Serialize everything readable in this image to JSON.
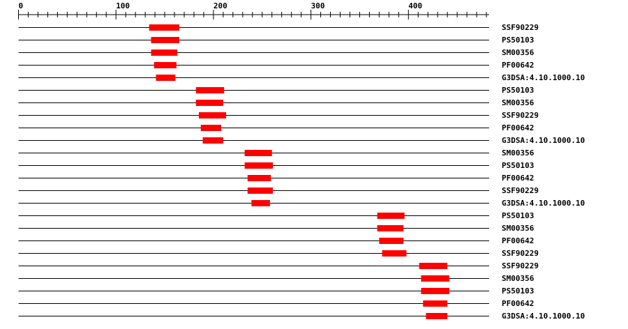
{
  "chart_data": {
    "type": "domain-track",
    "axis": {
      "min": 0,
      "max": 480,
      "major_ticks": [
        0,
        100,
        200,
        300,
        400
      ],
      "minor_step": 10
    },
    "bar_color": "#ff0000",
    "tracks": [
      {
        "label": "SSF90229",
        "start": 134,
        "end": 165
      },
      {
        "label": "PS50103",
        "start": 136,
        "end": 165
      },
      {
        "label": "SM00356",
        "start": 136,
        "end": 163
      },
      {
        "label": "PF00642",
        "start": 139,
        "end": 162
      },
      {
        "label": "G3DSA:4.10.1000.10",
        "start": 141,
        "end": 161
      },
      {
        "label": "PS50103",
        "start": 182,
        "end": 211
      },
      {
        "label": "SM00356",
        "start": 182,
        "end": 210
      },
      {
        "label": "SSF90229",
        "start": 185,
        "end": 213
      },
      {
        "label": "PF00642",
        "start": 187,
        "end": 208
      },
      {
        "label": "G3DSA:4.10.1000.10",
        "start": 189,
        "end": 210
      },
      {
        "label": "SM00356",
        "start": 232,
        "end": 260
      },
      {
        "label": "PS50103",
        "start": 232,
        "end": 261
      },
      {
        "label": "PF00642",
        "start": 235,
        "end": 259
      },
      {
        "label": "SSF90229",
        "start": 235,
        "end": 261
      },
      {
        "label": "G3DSA:4.10.1000.10",
        "start": 239,
        "end": 258
      },
      {
        "label": "PS50103",
        "start": 368,
        "end": 396
      },
      {
        "label": "SM00356",
        "start": 368,
        "end": 395
      },
      {
        "label": "PF00642",
        "start": 370,
        "end": 395
      },
      {
        "label": "SSF90229",
        "start": 373,
        "end": 398
      },
      {
        "label": "SSF90229",
        "start": 411,
        "end": 440
      },
      {
        "label": "SM00356",
        "start": 413,
        "end": 442
      },
      {
        "label": "PS50103",
        "start": 413,
        "end": 442
      },
      {
        "label": "PF00642",
        "start": 415,
        "end": 440
      },
      {
        "label": "G3DSA:4.10.1000.10",
        "start": 418,
        "end": 440
      }
    ]
  }
}
